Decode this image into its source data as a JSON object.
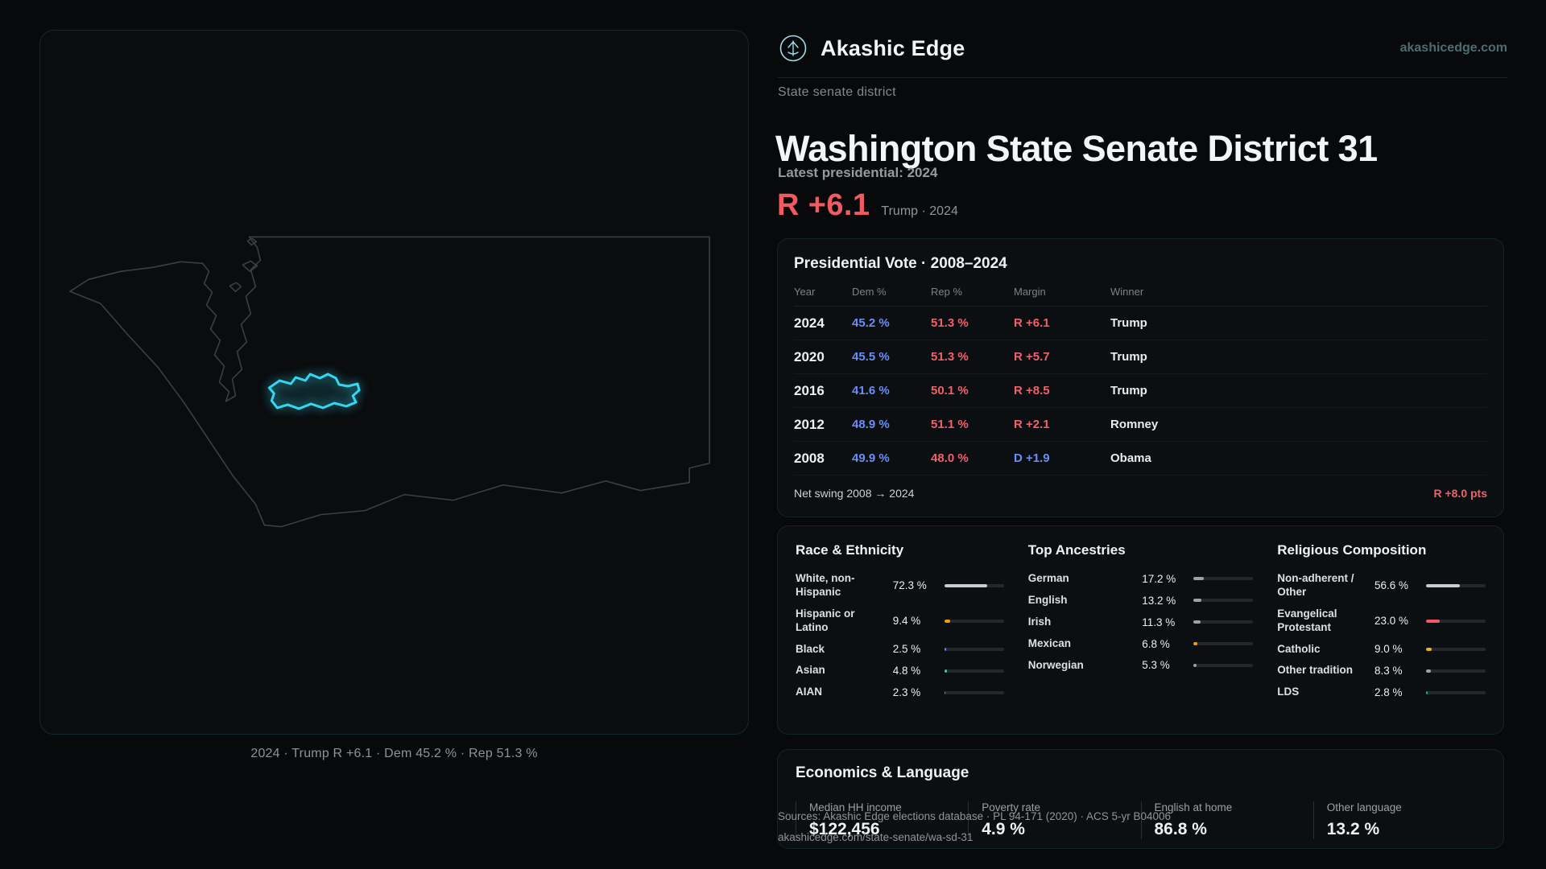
{
  "header": {
    "brand": "Akashic Edge",
    "site": "akashicedge.com"
  },
  "map": {
    "caption": "2024 · Trump R +6.1 · Dem 45.2 % · Rep 51.3 %",
    "accent_color": "#35d6f0"
  },
  "hero": {
    "eyebrow": "State senate district",
    "title": "Washington State Senate District 31",
    "latest_label": "Latest presidential: 2024",
    "margin_value": "R +6.1",
    "margin_detail": "Trump · 2024",
    "margin_color": "#ef5b60"
  },
  "presidential": {
    "title": "Presidential Vote · 2008–2024",
    "columns": [
      "Year",
      "Dem %",
      "Rep %",
      "Margin",
      "Winner"
    ],
    "rows": [
      {
        "year": "2024",
        "dem": "45.2 %",
        "rep": "51.3 %",
        "margin": "R +6.1",
        "winner": "Trump",
        "party": "R"
      },
      {
        "year": "2020",
        "dem": "45.5 %",
        "rep": "51.3 %",
        "margin": "R +5.7",
        "winner": "Trump",
        "party": "R"
      },
      {
        "year": "2016",
        "dem": "41.6 %",
        "rep": "50.1 %",
        "margin": "R +8.5",
        "winner": "Trump",
        "party": "R"
      },
      {
        "year": "2012",
        "dem": "48.9 %",
        "rep": "51.1 %",
        "margin": "R +2.1",
        "winner": "Romney",
        "party": "R"
      },
      {
        "year": "2008",
        "dem": "49.9 %",
        "rep": "48.0 %",
        "margin": "D +1.9",
        "winner": "Obama",
        "party": "D"
      }
    ],
    "net_swing_label": "Net swing 2008 → 2024",
    "net_swing_value": "R +8.0 pts",
    "dem_color": "#6b8df8",
    "rep_color": "#f2606b"
  },
  "demographics": {
    "race": {
      "title": "Race & Ethnicity",
      "rows": [
        {
          "label": "White, non-Hispanic",
          "value": "72.3 %",
          "pct": 72.3,
          "color": "#c7ccd1"
        },
        {
          "label": "Hispanic or Latino",
          "value": "9.4 %",
          "pct": 9.4,
          "color": "#f59e0b"
        },
        {
          "label": "Black",
          "value": "2.5 %",
          "pct": 2.5,
          "color": "#6b8df8"
        },
        {
          "label": "Asian",
          "value": "4.8 %",
          "pct": 4.8,
          "color": "#34d399"
        },
        {
          "label": "AIAN",
          "value": "2.3 %",
          "pct": 2.3,
          "color": "#f97316"
        }
      ]
    },
    "ancestries": {
      "title": "Top Ancestries",
      "rows": [
        {
          "label": "German",
          "value": "17.2 %",
          "pct": 17.2,
          "color": "#9aa3ab"
        },
        {
          "label": "English",
          "value": "13.2 %",
          "pct": 13.2,
          "color": "#9aa3ab"
        },
        {
          "label": "Irish",
          "value": "11.3 %",
          "pct": 11.3,
          "color": "#9aa3ab"
        },
        {
          "label": "Mexican",
          "value": "6.8 %",
          "pct": 6.8,
          "color": "#f59e0b"
        },
        {
          "label": "Norwegian",
          "value": "5.3 %",
          "pct": 5.3,
          "color": "#9aa3ab"
        }
      ]
    },
    "religion": {
      "title": "Religious Composition",
      "rows": [
        {
          "label": "Non-adherent / Other",
          "value": "56.6 %",
          "pct": 56.6,
          "color": "#c7ccd1"
        },
        {
          "label": "Evangelical Protestant",
          "value": "23.0 %",
          "pct": 23.0,
          "color": "#ef5a64"
        },
        {
          "label": "Catholic",
          "value": "9.0 %",
          "pct": 9.0,
          "color": "#eab308"
        },
        {
          "label": "Other tradition",
          "value": "8.3 %",
          "pct": 8.3,
          "color": "#9aa3ab"
        },
        {
          "label": "LDS",
          "value": "2.8 %",
          "pct": 2.8,
          "color": "#10b981"
        }
      ]
    }
  },
  "economics": {
    "title": "Economics & Language",
    "stats": [
      {
        "label": "Median HH income",
        "value": "$122,456"
      },
      {
        "label": "Poverty rate",
        "value": "4.9 %"
      },
      {
        "label": "English at home",
        "value": "86.8 %"
      },
      {
        "label": "Other language",
        "value": "13.2 %"
      }
    ]
  },
  "footer": {
    "sources": "Sources: Akashic Edge elections database · PL 94-171 (2020) · ACS 5-yr B04006",
    "permalink": "akashicedge.com/state-senate/wa-sd-31"
  }
}
